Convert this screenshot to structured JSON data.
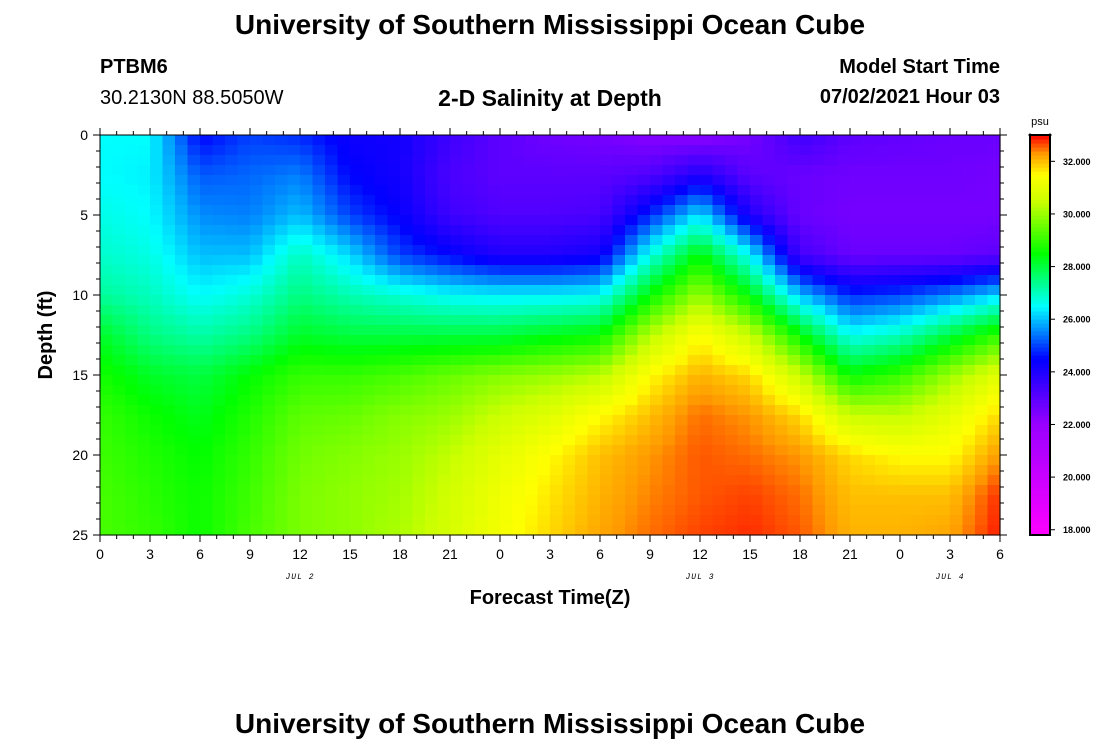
{
  "header": {
    "title": "University of Southern Mississippi Ocean Cube",
    "station": "PTBM6",
    "coordinates": "30.2130N  88.5050W",
    "subtitle": "2-D Salinity at Depth",
    "model_start_label": "Model Start Time",
    "model_start_value": "07/02/2021 Hour 03"
  },
  "footer": {
    "title": "University of Southern Mississippi Ocean Cube"
  },
  "chart_data": {
    "type": "heatmap",
    "title": "2-D Salinity at Depth",
    "xlabel": "Forecast Time(Z)",
    "ylabel": "Depth (ft)",
    "x_ticks": [
      "0",
      "3",
      "6",
      "9",
      "12",
      "15",
      "18",
      "21",
      "0",
      "3",
      "6",
      "9",
      "12",
      "15",
      "18",
      "21",
      "0",
      "3",
      "6"
    ],
    "x_range_hours": [
      0,
      54
    ],
    "date_labels": [
      {
        "text": "JUL 2",
        "hour": 12
      },
      {
        "text": "JUL 3",
        "hour": 36
      },
      {
        "text": "JUL 4",
        "hour": 51
      }
    ],
    "y_ticks": [
      "0",
      "5",
      "10",
      "15",
      "20",
      "25"
    ],
    "y_range_ft": [
      0,
      25
    ],
    "colorbar": {
      "unit": "psu",
      "min": 17.8,
      "max": 33.0,
      "tick_labels": [
        "18.000",
        "20.000",
        "22.000",
        "24.000",
        "26.000",
        "28.000",
        "30.000",
        "32.000"
      ],
      "tick_values": [
        18,
        20,
        22,
        24,
        26,
        28,
        30,
        32
      ],
      "stops": [
        {
          "value": 17.8,
          "color": "#ff00ff"
        },
        {
          "value": 22.0,
          "color": "#9a00ff"
        },
        {
          "value": 24.5,
          "color": "#0000ff"
        },
        {
          "value": 26.5,
          "color": "#00ffff"
        },
        {
          "value": 28.5,
          "color": "#00ff00"
        },
        {
          "value": 30.5,
          "color": "#ccff00"
        },
        {
          "value": 31.5,
          "color": "#ffff00"
        },
        {
          "value": 32.3,
          "color": "#ff9900"
        },
        {
          "value": 33.0,
          "color": "#ff0000"
        }
      ]
    },
    "grid": {
      "hours": [
        0,
        3,
        6,
        9,
        12,
        15,
        18,
        21,
        24,
        27,
        30,
        33,
        36,
        39,
        42,
        45,
        48,
        51,
        54
      ],
      "depths_ft": [
        0,
        2.5,
        5,
        7.5,
        10,
        12.5,
        15,
        17.5,
        20,
        22.5,
        25
      ],
      "salinity_psu": [
        [
          26.5,
          26.5,
          24.5,
          25.0,
          24.8,
          24.3,
          24.2,
          23.5,
          23.0,
          22.7,
          22.6,
          22.3,
          22.2,
          22.6,
          23.5,
          23.0,
          22.9,
          22.8,
          22.8
        ],
        [
          26.5,
          26.4,
          25.2,
          25.3,
          25.5,
          24.5,
          24.2,
          23.3,
          23.0,
          23.0,
          23.0,
          23.2,
          24.0,
          23.0,
          22.8,
          22.7,
          22.7,
          22.7,
          22.6
        ],
        [
          26.7,
          26.5,
          25.6,
          25.5,
          26.0,
          25.0,
          24.4,
          23.5,
          23.2,
          23.2,
          23.3,
          24.8,
          26.3,
          24.0,
          22.8,
          22.6,
          22.6,
          22.6,
          22.6
        ],
        [
          26.9,
          26.7,
          26.0,
          26.0,
          27.0,
          26.2,
          25.0,
          24.5,
          24.0,
          24.0,
          24.2,
          26.7,
          28.5,
          26.5,
          23.4,
          22.8,
          22.8,
          22.8,
          23.0
        ],
        [
          27.3,
          27.0,
          26.5,
          26.8,
          27.5,
          27.1,
          26.8,
          26.5,
          26.4,
          26.4,
          26.5,
          28.5,
          30.0,
          28.4,
          26.0,
          24.8,
          25.0,
          25.5,
          26.2
        ],
        [
          28.2,
          27.5,
          27.2,
          27.5,
          28.2,
          28.0,
          28.0,
          28.0,
          28.0,
          28.3,
          28.5,
          30.3,
          31.5,
          30.5,
          28.5,
          26.6,
          27.0,
          28.0,
          29.0
        ],
        [
          28.7,
          28.2,
          28.0,
          28.5,
          29.0,
          29.0,
          29.2,
          29.5,
          29.8,
          30.0,
          30.3,
          31.5,
          32.1,
          31.8,
          30.5,
          28.5,
          29.0,
          30.0,
          31.0
        ],
        [
          29.0,
          28.6,
          28.3,
          28.8,
          29.4,
          29.5,
          29.8,
          30.0,
          30.5,
          30.9,
          31.5,
          32.0,
          32.5,
          32.3,
          31.8,
          30.5,
          30.4,
          31.0,
          31.8
        ],
        [
          29.1,
          28.8,
          28.5,
          29.0,
          29.6,
          29.8,
          30.0,
          30.4,
          31.0,
          31.5,
          32.0,
          32.3,
          32.6,
          32.5,
          32.3,
          31.8,
          31.5,
          31.5,
          32.3
        ],
        [
          29.2,
          28.9,
          28.6,
          29.1,
          29.7,
          29.9,
          30.1,
          30.6,
          31.2,
          31.7,
          32.1,
          32.4,
          32.6,
          32.7,
          32.5,
          32.0,
          32.0,
          32.0,
          32.8
        ],
        [
          29.2,
          29.0,
          28.6,
          29.2,
          29.7,
          29.9,
          30.2,
          30.7,
          31.3,
          31.8,
          32.2,
          32.5,
          32.7,
          32.8,
          32.6,
          32.1,
          32.1,
          32.2,
          32.9
        ]
      ]
    }
  }
}
